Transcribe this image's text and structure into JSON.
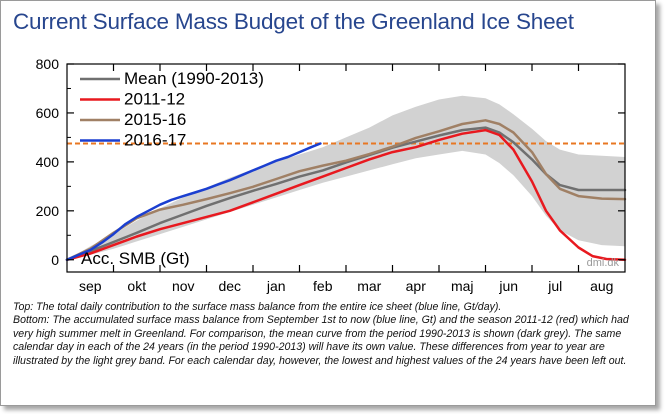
{
  "header": {
    "title": "Current Surface Mass Budget of the Greenland Ice Sheet"
  },
  "caption": {
    "top": "Top: The total daily contribution to the surface mass balance from the entire ice sheet (blue line, Gt/day).",
    "bottom": "Bottom: The accumulated surface mass balance from September 1st to now (blue line, Gt) and the season 2011-12 (red) which had very high summer melt in Greenland. For comparison, the mean curve from the period 1990-2013 is shown (dark grey). The same calendar day in each of the 24 years (in the period 1990-2013) will have its own value. These differences from year to year are illustrated by the light grey band. For each calendar day, however, the lowest and highest values of the 24 years have been left out."
  },
  "chart_data": {
    "type": "line",
    "ylabel": "Acc. SMB (Gt)",
    "watermark": "dmi.dk",
    "ylim": [
      -50,
      800
    ],
    "xlim": [
      0,
      12
    ],
    "yticks": [
      0,
      200,
      400,
      600,
      800
    ],
    "categories": [
      "sep",
      "okt",
      "nov",
      "dec",
      "jan",
      "feb",
      "mar",
      "apr",
      "maj",
      "jun",
      "jul",
      "aug"
    ],
    "grid": false,
    "legend_position": "top-left",
    "reference_line": {
      "y": 475,
      "color": "#e87722",
      "style": "dashed"
    },
    "band": {
      "x": [
        0,
        0.5,
        1,
        1.5,
        2,
        2.5,
        3,
        3.5,
        4,
        4.5,
        5,
        5.5,
        6,
        6.5,
        7,
        7.5,
        8,
        8.5,
        9,
        9.3,
        9.6,
        10,
        10.3,
        10.6,
        11,
        11.5,
        12
      ],
      "low": [
        0,
        20,
        45,
        75,
        105,
        135,
        165,
        195,
        225,
        255,
        285,
        315,
        340,
        365,
        390,
        415,
        430,
        445,
        430,
        395,
        345,
        260,
        180,
        120,
        80,
        60,
        55
      ],
      "high": [
        0,
        55,
        105,
        160,
        210,
        255,
        295,
        335,
        370,
        400,
        430,
        460,
        500,
        540,
        590,
        625,
        655,
        670,
        660,
        635,
        595,
        535,
        485,
        450,
        430,
        425,
        420
      ]
    },
    "series": [
      {
        "name": "Mean (1990-2013)",
        "color": "#707070",
        "width": 2.5,
        "x": [
          0,
          0.5,
          1,
          1.5,
          2,
          2.5,
          3,
          3.5,
          4,
          4.5,
          5,
          5.5,
          6,
          6.5,
          7,
          7.5,
          8,
          8.5,
          9,
          9.3,
          9.6,
          10,
          10.3,
          10.6,
          11,
          11.5,
          12
        ],
        "y": [
          0,
          35,
          72,
          110,
          150,
          185,
          220,
          252,
          282,
          310,
          340,
          365,
          398,
          428,
          458,
          483,
          508,
          530,
          540,
          520,
          480,
          410,
          350,
          305,
          285,
          285,
          285
        ]
      },
      {
        "name": "2011-12",
        "color": "#e8191f",
        "width": 2.5,
        "x": [
          0,
          0.5,
          1,
          1.5,
          2,
          2.5,
          3,
          3.5,
          4,
          4.5,
          5,
          5.5,
          6,
          6.5,
          7,
          7.5,
          8,
          8.5,
          9,
          9.3,
          9.6,
          10,
          10.3,
          10.6,
          11,
          11.3,
          11.6,
          12
        ],
        "y": [
          0,
          25,
          60,
          95,
          125,
          150,
          175,
          200,
          235,
          270,
          305,
          340,
          375,
          410,
          440,
          460,
          490,
          515,
          530,
          510,
          450,
          320,
          200,
          120,
          50,
          15,
          3,
          0
        ]
      },
      {
        "name": "2015-16",
        "color": "#a08065",
        "width": 2.5,
        "x": [
          0,
          0.5,
          1,
          1.5,
          2,
          2.5,
          3,
          3.5,
          4,
          4.5,
          5,
          5.5,
          6,
          6.5,
          7,
          7.5,
          8,
          8.5,
          9,
          9.3,
          9.6,
          10,
          10.3,
          10.6,
          11,
          11.5,
          12
        ],
        "y": [
          0,
          45,
          110,
          170,
          205,
          225,
          248,
          272,
          298,
          330,
          362,
          385,
          405,
          432,
          462,
          498,
          525,
          555,
          570,
          555,
          520,
          440,
          350,
          290,
          260,
          250,
          248
        ]
      },
      {
        "name": "2016-17",
        "color": "#1b3fd0",
        "width": 2.5,
        "x": [
          0,
          0.25,
          0.5,
          0.75,
          1,
          1.25,
          1.5,
          1.75,
          2,
          2.25,
          2.5,
          2.75,
          3,
          3.25,
          3.5,
          3.75,
          4,
          4.25,
          4.5,
          4.75,
          5,
          5.25,
          5.45
        ],
        "y": [
          0,
          20,
          40,
          70,
          105,
          145,
          175,
          200,
          225,
          245,
          260,
          275,
          290,
          308,
          325,
          345,
          365,
          385,
          405,
          420,
          440,
          460,
          475
        ]
      }
    ]
  }
}
